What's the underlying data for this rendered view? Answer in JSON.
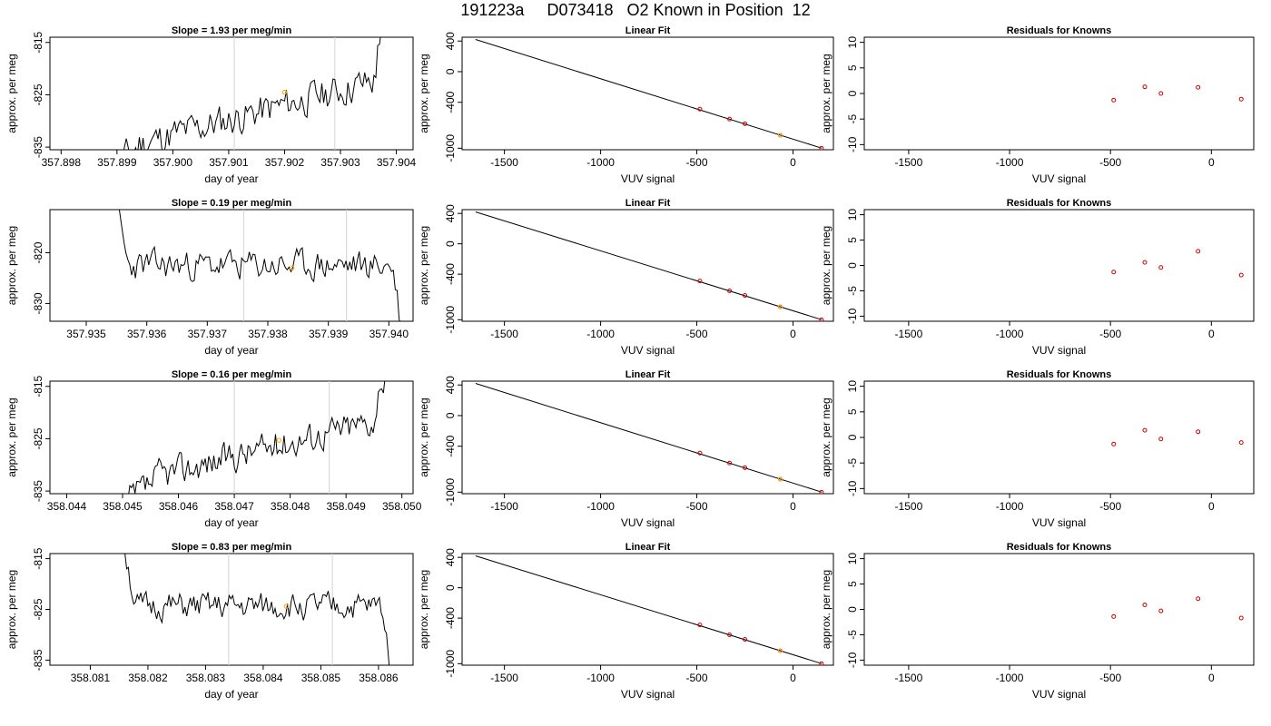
{
  "page_title": "191223a     D073418   O2 Known in Position  12",
  "colors": {
    "line": "#000000",
    "frame": "#000000",
    "marker_range": "#d3d3d3",
    "point_known": "#cc0000",
    "point_highlight": "#ffa500"
  },
  "chart_data": [
    {
      "type": "line",
      "kind": "timeseries",
      "title": "Slope =  1.93  per meg/min",
      "xlabel": "day of year",
      "ylabel": "approx. per meg",
      "xlim": [
        357.8978,
        357.9043
      ],
      "ylim": [
        -835.5,
        -814
      ],
      "xticks": [
        "357.898",
        "357.899",
        "357.900",
        "357.901",
        "357.902",
        "357.903",
        "357.904"
      ],
      "yticks": [
        "-815",
        "-825",
        "-835"
      ],
      "range_markers": [
        357.9011,
        357.9029
      ],
      "highlight_point": {
        "x": 357.902,
        "y": -824.5
      },
      "trend": {
        "x_start": 357.8988,
        "x_end": 357.9038,
        "y_start": -840,
        "y_end": -814,
        "jitter": 2.2,
        "seed": 11
      }
    },
    {
      "type": "scatter",
      "kind": "fit",
      "title": "Linear Fit",
      "xlabel": "VUV signal",
      "ylabel": "approx. per meg",
      "xlim": [
        -1720,
        210
      ],
      "ylim": [
        -1020,
        450
      ],
      "xticks": [
        "-1500",
        "-1000",
        "-500",
        "0"
      ],
      "yticks": [
        "400",
        "0",
        "-400",
        "-1000"
      ],
      "fit_line": {
        "x": [
          -1650,
          150
        ],
        "y": [
          420,
          -1000
        ]
      },
      "points": {
        "x": [
          -484,
          -330,
          -250,
          -66,
          148
        ],
        "y": [
          -490,
          -620,
          -680,
          -830,
          -1000
        ]
      },
      "highlight_point": {
        "x": -66,
        "y": -830
      }
    },
    {
      "type": "scatter",
      "kind": "residuals",
      "title": "Residuals for Knowns",
      "xlabel": "VUV signal",
      "ylabel": "approx. per meg",
      "xlim": [
        -1720,
        210
      ],
      "ylim": [
        -11,
        11
      ],
      "xticks": [
        "-1500",
        "-1000",
        "-500",
        "0"
      ],
      "yticks": [
        "10",
        "5",
        "0",
        "-5",
        "-10"
      ],
      "points": {
        "x": [
          -484,
          -330,
          -250,
          -66,
          148
        ],
        "y": [
          -1.3,
          1.3,
          0,
          1.2,
          -1.1
        ]
      }
    },
    {
      "type": "line",
      "kind": "timeseries",
      "title": "Slope =  0.19  per meg/min",
      "xlabel": "day of year",
      "ylabel": "approx. per meg",
      "xlim": [
        357.9344,
        357.9404
      ],
      "ylim": [
        -833.5,
        -811.5
      ],
      "xticks": [
        "357.935",
        "357.936",
        "357.937",
        "357.938",
        "357.939",
        "357.940"
      ],
      "yticks": [
        "-820",
        "-830"
      ],
      "range_markers": [
        357.9376,
        357.9393
      ],
      "highlight_point": {
        "x": 357.9384,
        "y": -823
      },
      "trend": {
        "x_start": 357.9355,
        "x_end": 357.9402,
        "y_start": -811,
        "y_end": -834,
        "jitter": 2.0,
        "seed": 23
      }
    },
    {
      "type": "scatter",
      "kind": "fit",
      "title": "Linear Fit",
      "xlabel": "VUV signal",
      "ylabel": "approx. per meg",
      "xlim": [
        -1720,
        210
      ],
      "ylim": [
        -1020,
        450
      ],
      "xticks": [
        "-1500",
        "-1000",
        "-500",
        "0"
      ],
      "yticks": [
        "400",
        "0",
        "-400",
        "-1000"
      ],
      "fit_line": {
        "x": [
          -1650,
          150
        ],
        "y": [
          420,
          -1000
        ]
      },
      "points": {
        "x": [
          -484,
          -330,
          -250,
          -66,
          148
        ],
        "y": [
          -490,
          -620,
          -680,
          -830,
          -1000
        ]
      },
      "highlight_point": {
        "x": -66,
        "y": -830
      }
    },
    {
      "type": "scatter",
      "kind": "residuals",
      "title": "Residuals for Knowns",
      "xlabel": "VUV signal",
      "ylabel": "approx. per meg",
      "xlim": [
        -1720,
        210
      ],
      "ylim": [
        -11,
        11
      ],
      "xticks": [
        "-1500",
        "-1000",
        "-500",
        "0"
      ],
      "yticks": [
        "10",
        "5",
        "0",
        "-5",
        "-10"
      ],
      "points": {
        "x": [
          -484,
          -330,
          -250,
          -66,
          148
        ],
        "y": [
          -1.3,
          0.6,
          -0.4,
          2.8,
          -1.9
        ]
      }
    },
    {
      "type": "line",
      "kind": "timeseries",
      "title": "Slope =  0.16  per meg/min",
      "xlabel": "day of year",
      "ylabel": "approx. per meg",
      "xlim": [
        358.0437,
        358.0502
      ],
      "ylim": [
        -835.5,
        -814
      ],
      "xticks": [
        "358.044",
        "358.045",
        "358.046",
        "358.047",
        "358.048",
        "358.049",
        "358.050"
      ],
      "yticks": [
        "-815",
        "-825",
        "-835"
      ],
      "range_markers": [
        358.047,
        358.0487
      ],
      "highlight_point": {
        "x": 358.0478,
        "y": -825.3
      },
      "trend": {
        "x_start": 358.0451,
        "x_end": 358.0497,
        "y_start": -837,
        "y_end": -814,
        "jitter": 2.0,
        "seed": 37
      }
    },
    {
      "type": "scatter",
      "kind": "fit",
      "title": "Linear Fit",
      "xlabel": "VUV signal",
      "ylabel": "approx. per meg",
      "xlim": [
        -1720,
        210
      ],
      "ylim": [
        -1020,
        450
      ],
      "xticks": [
        "-1500",
        "-1000",
        "-500",
        "0"
      ],
      "yticks": [
        "400",
        "0",
        "-400",
        "-1000"
      ],
      "fit_line": {
        "x": [
          -1650,
          150
        ],
        "y": [
          420,
          -1000
        ]
      },
      "points": {
        "x": [
          -484,
          -330,
          -250,
          -66,
          148
        ],
        "y": [
          -490,
          -620,
          -680,
          -830,
          -1000
        ]
      },
      "highlight_point": {
        "x": -66,
        "y": -830
      }
    },
    {
      "type": "scatter",
      "kind": "residuals",
      "title": "Residuals for Knowns",
      "xlabel": "VUV signal",
      "ylabel": "approx. per meg",
      "xlim": [
        -1720,
        210
      ],
      "ylim": [
        -11,
        11
      ],
      "xticks": [
        "-1500",
        "-1000",
        "-500",
        "0"
      ],
      "yticks": [
        "10",
        "5",
        "0",
        "-5",
        "-10"
      ],
      "points": {
        "x": [
          -484,
          -330,
          -250,
          -66,
          148
        ],
        "y": [
          -1.3,
          1.4,
          -0.3,
          1.1,
          -1.0
        ]
      }
    },
    {
      "type": "line",
      "kind": "timeseries",
      "title": "Slope =  0.83  per meg/min",
      "xlabel": "day of year",
      "ylabel": "approx. per meg",
      "xlim": [
        358.0803,
        358.0866
      ],
      "ylim": [
        -836,
        -814
      ],
      "xticks": [
        "358.081",
        "358.082",
        "358.083",
        "358.084",
        "358.085",
        "358.086"
      ],
      "yticks": [
        "-815",
        "-825",
        "-835"
      ],
      "range_markers": [
        358.0834,
        358.0852
      ],
      "highlight_point": {
        "x": 358.0844,
        "y": -824.4
      },
      "trend": {
        "x_start": 358.0816,
        "x_end": 358.0862,
        "y_start": -813,
        "y_end": -836,
        "jitter": 1.8,
        "seed": 51
      }
    },
    {
      "type": "scatter",
      "kind": "fit",
      "title": "Linear Fit",
      "xlabel": "VUV signal",
      "ylabel": "approx. per meg",
      "xlim": [
        -1720,
        210
      ],
      "ylim": [
        -1020,
        450
      ],
      "xticks": [
        "-1500",
        "-1000",
        "-500",
        "0"
      ],
      "yticks": [
        "400",
        "0",
        "-400",
        "-1000"
      ],
      "fit_line": {
        "x": [
          -1650,
          150
        ],
        "y": [
          420,
          -1000
        ]
      },
      "points": {
        "x": [
          -484,
          -330,
          -250,
          -66,
          148
        ],
        "y": [
          -490,
          -620,
          -680,
          -830,
          -1000
        ]
      },
      "highlight_point": {
        "x": -66,
        "y": -830
      }
    },
    {
      "type": "scatter",
      "kind": "residuals",
      "title": "Residuals for Knowns",
      "xlabel": "VUV signal",
      "ylabel": "approx. per meg",
      "xlim": [
        -1720,
        210
      ],
      "ylim": [
        -11,
        11
      ],
      "xticks": [
        "-1500",
        "-1000",
        "-500",
        "0"
      ],
      "yticks": [
        "10",
        "5",
        "0",
        "-5",
        "-10"
      ],
      "points": {
        "x": [
          -484,
          -330,
          -250,
          -66,
          148
        ],
        "y": [
          -1.4,
          0.9,
          -0.3,
          2.1,
          -1.7
        ]
      }
    }
  ]
}
